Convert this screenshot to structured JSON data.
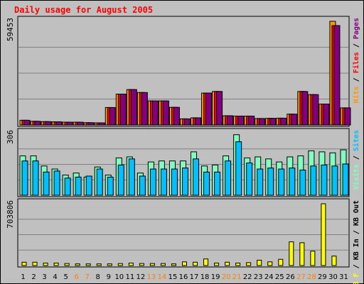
{
  "chart_data": {
    "type": "bar",
    "title": "Daily usage for August 2005",
    "categories": [
      "1",
      "2",
      "3",
      "4",
      "5",
      "6",
      "7",
      "8",
      "9",
      "10",
      "11",
      "12",
      "13",
      "14",
      "15",
      "16",
      "17",
      "18",
      "19",
      "20",
      "21",
      "22",
      "23",
      "24",
      "25",
      "26",
      "27",
      "28",
      "29",
      "30",
      "31"
    ],
    "weekend_days": [
      "6",
      "7",
      "13",
      "14",
      "20",
      "21",
      "27",
      "28"
    ],
    "panels": [
      {
        "name": "hits-files-pages",
        "max_label": "59453",
        "ymax": 59453,
        "side_label": [
          "Hits",
          "Files",
          "Pages"
        ],
        "series": [
          {
            "name": "Hits",
            "color": "#ff9900",
            "values": [
              2700,
              2100,
              1900,
              1800,
              1600,
              1600,
              1300,
              1200,
              10000,
              17700,
              20300,
              18600,
              13800,
              13800,
              10100,
              3500,
              4100,
              18300,
              19200,
              5300,
              5100,
              5100,
              3700,
              3800,
              3900,
              6200,
              19200,
              17400,
              12000,
              59453,
              9800
            ]
          },
          {
            "name": "Files",
            "color": "#ff0000",
            "values": [
              2700,
              2100,
              1900,
              1800,
              1600,
              1600,
              1300,
              1200,
              10000,
              17700,
              20300,
              18600,
              13800,
              13800,
              10100,
              3500,
              4100,
              18300,
              19200,
              5300,
              5100,
              5100,
              3700,
              3800,
              3900,
              6200,
              19200,
              17400,
              12000,
              57000,
              9800
            ]
          },
          {
            "name": "Pages",
            "color": "#800080",
            "values": [
              2700,
              2100,
              1900,
              1800,
              1600,
              1600,
              1300,
              1200,
              10000,
              17700,
              20300,
              18600,
              13800,
              13800,
              10100,
              3500,
              4100,
              18300,
              19200,
              5300,
              5100,
              5100,
              3700,
              3800,
              3900,
              6200,
              19200,
              17400,
              12000,
              57000,
              9800
            ]
          }
        ]
      },
      {
        "name": "visits-sites",
        "max_label": "306",
        "ymax": 306,
        "side_label": [
          "Visits",
          "Sites"
        ],
        "series": [
          {
            "name": "Visits",
            "color": "#80ffc0",
            "values": [
              195,
              195,
              145,
              130,
              100,
              110,
              90,
              140,
              100,
              185,
              190,
              110,
              165,
              170,
              170,
              170,
              215,
              145,
              150,
              195,
              300,
              185,
              190,
              180,
              165,
              190,
              195,
              220,
              215,
              210,
              225
            ]
          },
          {
            "name": "Sites",
            "color": "#00c0ff",
            "values": [
              170,
              170,
              115,
              120,
              85,
              90,
              95,
              130,
              90,
              150,
              180,
              95,
              130,
              130,
              130,
              135,
              180,
              115,
              115,
              170,
              265,
              160,
              130,
              135,
              130,
              135,
              125,
              145,
              150,
              145,
              155
            ]
          }
        ]
      },
      {
        "name": "kbytes",
        "max_label": "703806",
        "ymax": 703806,
        "side_label": [
          "KB F",
          "KB In",
          "KB Out"
        ],
        "series": [
          {
            "name": "KB F",
            "color": "#ffff00",
            "values": [
              38000,
              38000,
              28000,
              28000,
              23000,
              19000,
              19000,
              19000,
              19000,
              23000,
              28000,
              23000,
              23000,
              23000,
              19000,
              42000,
              38000,
              75000,
              28000,
              38000,
              28000,
              33000,
              61000,
              42000,
              71000,
              270000,
              260000,
              164000,
              703806,
              108000,
              0
            ]
          }
        ]
      }
    ]
  }
}
